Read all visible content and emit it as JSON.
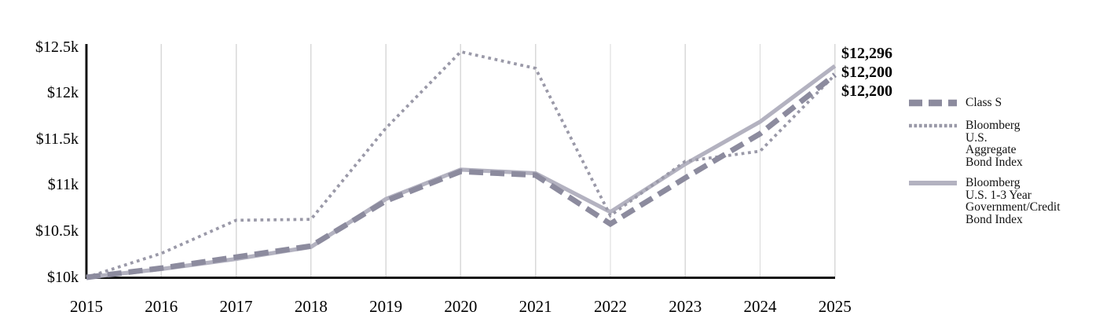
{
  "chart_data": {
    "type": "line",
    "x_labels": [
      "2015",
      "2016",
      "2017",
      "2018",
      "2019",
      "2020",
      "2021",
      "2022",
      "2023",
      "2024",
      "2025"
    ],
    "y_tick_labels": [
      "$12.5k",
      "$12k",
      "$11.5k",
      "$11k",
      "$10.5k",
      "$10k"
    ],
    "y_tick_values": [
      12500,
      12000,
      11500,
      11000,
      10500,
      10000
    ],
    "ylim": [
      10000,
      12500
    ],
    "grid": "vertical-only",
    "legend_position": "right",
    "series": [
      {
        "name": "Class S",
        "style": "dashed",
        "color": "#8c8b9e",
        "values": [
          10000,
          10100,
          10220,
          10340,
          10830,
          11150,
          11110,
          10580,
          11080,
          11560,
          12200
        ],
        "final_label": "$12,200"
      },
      {
        "name": "Bloomberg U.S. Aggregate Bond Index",
        "style": "dotted",
        "color": "#9a99a8",
        "values": [
          10000,
          10260,
          10620,
          10630,
          11620,
          12450,
          12270,
          10670,
          11260,
          11370,
          12200
        ],
        "final_label": "$12,200"
      },
      {
        "name": "Bloomberg U.S. 1-3 Year Government/Credit Bond Index",
        "style": "solid",
        "color": "#b3b2c0",
        "values": [
          10000,
          10090,
          10200,
          10330,
          10850,
          11170,
          11130,
          10710,
          11230,
          11690,
          12296
        ],
        "final_label": "$12,296"
      }
    ],
    "end_labels": [
      "$12,296",
      "$12,200",
      "$12,200"
    ]
  },
  "legend": {
    "items": [
      {
        "label": "Class S",
        "lines": [
          "Class S"
        ]
      },
      {
        "label": "Bloomberg U.S. Aggregate Bond Index",
        "lines": [
          "Bloomberg",
          "U.S.",
          "Aggregate",
          "Bond Index"
        ]
      },
      {
        "label": "Bloomberg U.S. 1-3 Year Government/Credit Bond Index",
        "lines": [
          "Bloomberg",
          "U.S. 1-3 Year",
          "Government/Credit",
          "Bond Index"
        ]
      }
    ]
  },
  "colors": {
    "axis": "#141414",
    "grid": "#d9d9d9",
    "text": "#000000"
  }
}
